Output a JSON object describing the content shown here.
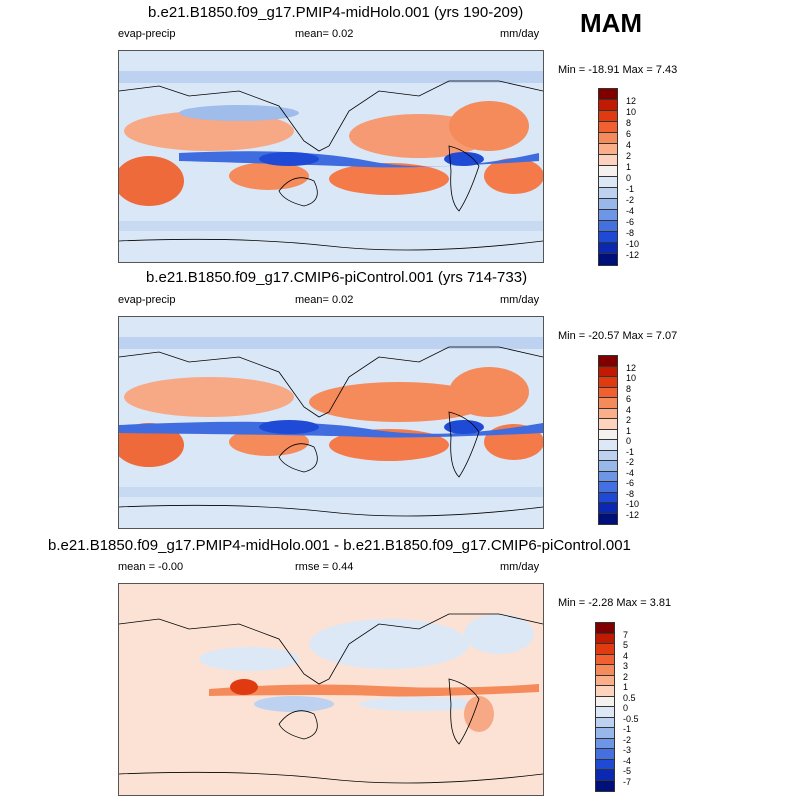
{
  "season": "MAM",
  "panels": [
    {
      "title": "b.e21.B1850.f09_g17.PMIP4-midHolo.001 (yrs 190-209)",
      "left_label": "evap-precip",
      "center_label": "mean=   0.02",
      "units": "mm/day",
      "minmax": "Min = -18.91 Max =   7.43",
      "colorbar_labels": [
        "12",
        "10",
        "8",
        "6",
        "4",
        "2",
        "1",
        "0",
        "-1",
        "-2",
        "-4",
        "-6",
        "-8",
        "-10",
        "-12"
      ],
      "colors": [
        "#800000",
        "#c01a00",
        "#e03a10",
        "#f06030",
        "#f58a5a",
        "#faae8a",
        "#fdd3bd",
        "#f4f1ee",
        "#dde8f6",
        "#bcd2f0",
        "#98b8ec",
        "#6e96e6",
        "#4470e0",
        "#1f4ad6",
        "#0a28b0",
        "#00107a"
      ]
    },
    {
      "title": "b.e21.B1850.f09_g17.CMIP6-piControl.001 (yrs 714-733)",
      "left_label": "evap-precip",
      "center_label": "mean=   0.02",
      "units": "mm/day",
      "minmax": "Min = -20.57 Max =   7.07",
      "colorbar_labels": [
        "12",
        "10",
        "8",
        "6",
        "4",
        "2",
        "1",
        "0",
        "-1",
        "-2",
        "-4",
        "-6",
        "-8",
        "-10",
        "-12"
      ],
      "colors": [
        "#800000",
        "#c01a00",
        "#e03a10",
        "#f06030",
        "#f58a5a",
        "#faae8a",
        "#fdd3bd",
        "#f4f1ee",
        "#dde8f6",
        "#bcd2f0",
        "#98b8ec",
        "#6e96e6",
        "#4470e0",
        "#1f4ad6",
        "#0a28b0",
        "#00107a"
      ]
    },
    {
      "title": "b.e21.B1850.f09_g17.PMIP4-midHolo.001 - b.e21.B1850.f09_g17.CMIP6-piControl.001",
      "left_label": "mean =  -0.00",
      "center_label": "rmse =   0.44",
      "units": "mm/day",
      "minmax": "Min =  -2.28 Max =   3.81",
      "colorbar_labels": [
        "7",
        "5",
        "4",
        "3",
        "2",
        "1",
        "0.5",
        "0",
        "-0.5",
        "-1",
        "-2",
        "-3",
        "-4",
        "-5",
        "-7"
      ],
      "colors": [
        "#800000",
        "#c01a00",
        "#e03a10",
        "#f06030",
        "#f58a5a",
        "#faae8a",
        "#fdd3bd",
        "#f4f1ee",
        "#dde8f6",
        "#bcd2f0",
        "#98b8ec",
        "#6e96e6",
        "#4470e0",
        "#1f4ad6",
        "#0a28b0",
        "#00107a"
      ]
    }
  ]
}
